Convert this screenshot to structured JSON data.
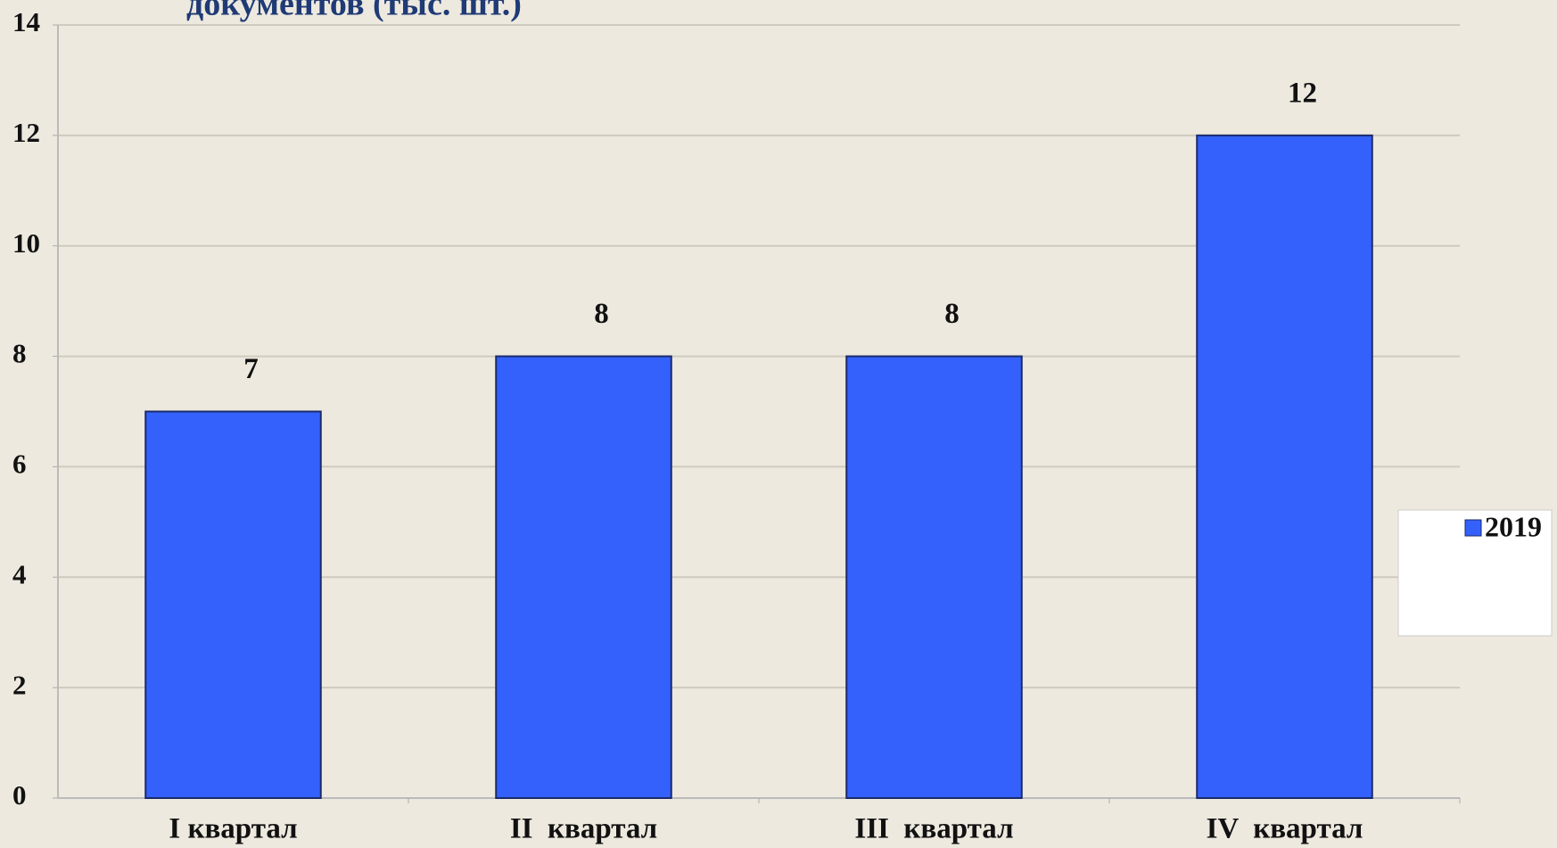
{
  "chart_data": {
    "type": "bar",
    "title": "документов (тыс. шт.)",
    "categories": [
      "I квартал",
      "II  квартал",
      "III  квартал",
      "IV  квартал"
    ],
    "series": [
      {
        "name": "2019",
        "color": "#3461fb",
        "values": [
          7,
          8,
          8,
          12
        ]
      }
    ],
    "ylim": [
      0,
      14
    ],
    "yticks": [
      0,
      2,
      4,
      6,
      8,
      10,
      12,
      14
    ],
    "grid": true,
    "legend": "right"
  }
}
